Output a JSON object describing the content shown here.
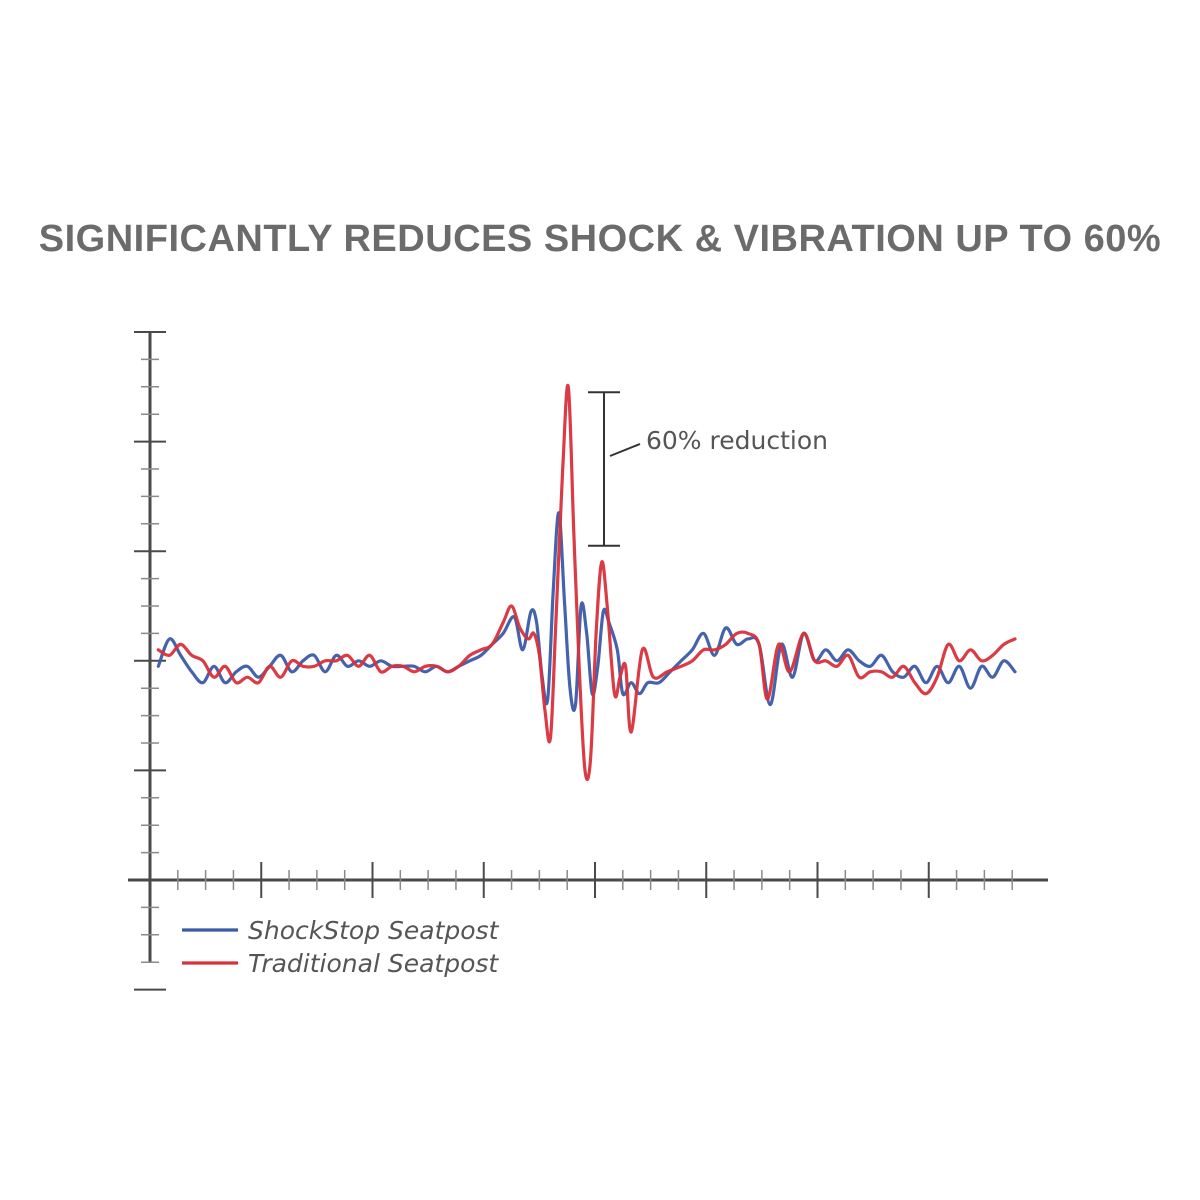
{
  "title": "SIGNIFICANTLY REDUCES SHOCK & VIBRATION UP TO 60%",
  "chart_data": {
    "type": "line",
    "title": "SIGNIFICANTLY REDUCES SHOCK & VIBRATION UP TO 60%",
    "xlabel": "",
    "ylabel": "",
    "xlim": [
      0,
      16
    ],
    "ylim": [
      -2,
      10
    ],
    "grid": false,
    "legend_position": "bottom-left",
    "annotation": {
      "text": "60% reduction",
      "from": 8.9,
      "to": 6.1
    },
    "series": [
      {
        "name": "ShockStop Seatpost",
        "color": "#3b5ba8",
        "points": [
          [
            0.15,
            3.9
          ],
          [
            0.35,
            4.4
          ],
          [
            0.55,
            4.1
          ],
          [
            0.75,
            3.8
          ],
          [
            0.95,
            3.6
          ],
          [
            1.15,
            3.9
          ],
          [
            1.35,
            3.6
          ],
          [
            1.55,
            3.8
          ],
          [
            1.75,
            3.9
          ],
          [
            1.95,
            3.7
          ],
          [
            2.15,
            3.9
          ],
          [
            2.35,
            4.1
          ],
          [
            2.55,
            3.8
          ],
          [
            2.75,
            4.0
          ],
          [
            2.95,
            4.1
          ],
          [
            3.15,
            3.8
          ],
          [
            3.35,
            4.1
          ],
          [
            3.55,
            3.9
          ],
          [
            3.75,
            4.0
          ],
          [
            3.95,
            3.9
          ],
          [
            4.15,
            4.0
          ],
          [
            4.35,
            3.9
          ],
          [
            4.55,
            3.9
          ],
          [
            4.75,
            3.9
          ],
          [
            4.95,
            3.8
          ],
          [
            5.15,
            3.9
          ],
          [
            5.35,
            3.8
          ],
          [
            5.55,
            3.9
          ],
          [
            5.75,
            4.0
          ],
          [
            5.95,
            4.1
          ],
          [
            6.15,
            4.3
          ],
          [
            6.35,
            4.5
          ],
          [
            6.55,
            4.8
          ],
          [
            6.7,
            4.2
          ],
          [
            6.85,
            4.9
          ],
          [
            6.95,
            4.7
          ],
          [
            7.05,
            3.7
          ],
          [
            7.15,
            3.3
          ],
          [
            7.25,
            5.3
          ],
          [
            7.35,
            6.7
          ],
          [
            7.45,
            5.1
          ],
          [
            7.55,
            3.5
          ],
          [
            7.65,
            3.2
          ],
          [
            7.75,
            5.0
          ],
          [
            7.85,
            4.5
          ],
          [
            7.95,
            3.4
          ],
          [
            8.05,
            3.9
          ],
          [
            8.15,
            4.9
          ],
          [
            8.25,
            4.7
          ],
          [
            8.4,
            4.2
          ],
          [
            8.5,
            3.4
          ],
          [
            8.65,
            3.6
          ],
          [
            8.8,
            3.4
          ],
          [
            8.95,
            3.6
          ],
          [
            9.15,
            3.6
          ],
          [
            9.35,
            3.8
          ],
          [
            9.55,
            4.0
          ],
          [
            9.75,
            4.2
          ],
          [
            9.95,
            4.5
          ],
          [
            10.15,
            4.1
          ],
          [
            10.35,
            4.6
          ],
          [
            10.55,
            4.3
          ],
          [
            10.75,
            4.4
          ],
          [
            10.95,
            4.3
          ],
          [
            11.15,
            3.2
          ],
          [
            11.35,
            4.3
          ],
          [
            11.55,
            3.7
          ],
          [
            11.75,
            4.5
          ],
          [
            11.95,
            4.0
          ],
          [
            12.15,
            4.2
          ],
          [
            12.35,
            4.0
          ],
          [
            12.55,
            4.2
          ],
          [
            12.75,
            4.0
          ],
          [
            12.95,
            3.9
          ],
          [
            13.15,
            4.1
          ],
          [
            13.35,
            3.8
          ],
          [
            13.55,
            3.7
          ],
          [
            13.75,
            3.9
          ],
          [
            13.95,
            3.6
          ],
          [
            14.15,
            3.9
          ],
          [
            14.35,
            3.6
          ],
          [
            14.55,
            3.9
          ],
          [
            14.75,
            3.5
          ],
          [
            14.95,
            3.9
          ],
          [
            15.15,
            3.7
          ],
          [
            15.35,
            4.0
          ],
          [
            15.55,
            3.8
          ]
        ]
      },
      {
        "name": "Traditional Seatpost",
        "color": "#d9303a",
        "points": [
          [
            0.15,
            4.2
          ],
          [
            0.35,
            4.1
          ],
          [
            0.55,
            4.3
          ],
          [
            0.75,
            4.1
          ],
          [
            0.95,
            4.0
          ],
          [
            1.15,
            3.7
          ],
          [
            1.35,
            3.9
          ],
          [
            1.55,
            3.6
          ],
          [
            1.75,
            3.7
          ],
          [
            1.95,
            3.6
          ],
          [
            2.15,
            3.9
          ],
          [
            2.35,
            3.7
          ],
          [
            2.55,
            4.0
          ],
          [
            2.75,
            3.9
          ],
          [
            2.95,
            3.9
          ],
          [
            3.15,
            4.0
          ],
          [
            3.35,
            4.0
          ],
          [
            3.55,
            4.1
          ],
          [
            3.75,
            3.9
          ],
          [
            3.95,
            4.1
          ],
          [
            4.15,
            3.8
          ],
          [
            4.35,
            3.9
          ],
          [
            4.55,
            3.9
          ],
          [
            4.75,
            3.8
          ],
          [
            4.95,
            3.9
          ],
          [
            5.15,
            3.9
          ],
          [
            5.35,
            3.8
          ],
          [
            5.55,
            3.9
          ],
          [
            5.75,
            4.1
          ],
          [
            5.95,
            4.2
          ],
          [
            6.15,
            4.3
          ],
          [
            6.35,
            4.7
          ],
          [
            6.5,
            5.0
          ],
          [
            6.65,
            4.6
          ],
          [
            6.8,
            4.4
          ],
          [
            6.9,
            4.5
          ],
          [
            7.0,
            4.1
          ],
          [
            7.1,
            3.1
          ],
          [
            7.2,
            2.6
          ],
          [
            7.3,
            4.8
          ],
          [
            7.42,
            7.5
          ],
          [
            7.52,
            9.0
          ],
          [
            7.62,
            6.3
          ],
          [
            7.72,
            3.8
          ],
          [
            7.82,
            2.0
          ],
          [
            7.92,
            2.2
          ],
          [
            8.02,
            4.5
          ],
          [
            8.12,
            5.8
          ],
          [
            8.22,
            5.0
          ],
          [
            8.35,
            3.4
          ],
          [
            8.45,
            3.7
          ],
          [
            8.55,
            3.9
          ],
          [
            8.65,
            2.7
          ],
          [
            8.85,
            4.2
          ],
          [
            9.05,
            3.7
          ],
          [
            9.3,
            3.8
          ],
          [
            9.55,
            3.9
          ],
          [
            9.75,
            4.0
          ],
          [
            9.95,
            4.2
          ],
          [
            10.15,
            4.2
          ],
          [
            10.35,
            4.3
          ],
          [
            10.55,
            4.5
          ],
          [
            10.75,
            4.5
          ],
          [
            10.95,
            4.3
          ],
          [
            11.1,
            3.3
          ],
          [
            11.3,
            4.3
          ],
          [
            11.5,
            3.8
          ],
          [
            11.75,
            4.5
          ],
          [
            11.95,
            4.0
          ],
          [
            12.15,
            4.0
          ],
          [
            12.35,
            3.9
          ],
          [
            12.55,
            4.1
          ],
          [
            12.75,
            3.7
          ],
          [
            12.95,
            3.8
          ],
          [
            13.15,
            3.8
          ],
          [
            13.35,
            3.7
          ],
          [
            13.55,
            3.9
          ],
          [
            13.75,
            3.6
          ],
          [
            13.95,
            3.4
          ],
          [
            14.15,
            3.7
          ],
          [
            14.35,
            4.3
          ],
          [
            14.55,
            4.0
          ],
          [
            14.75,
            4.2
          ],
          [
            14.95,
            4.0
          ],
          [
            15.15,
            4.1
          ],
          [
            15.35,
            4.3
          ],
          [
            15.55,
            4.4
          ]
        ]
      }
    ]
  }
}
